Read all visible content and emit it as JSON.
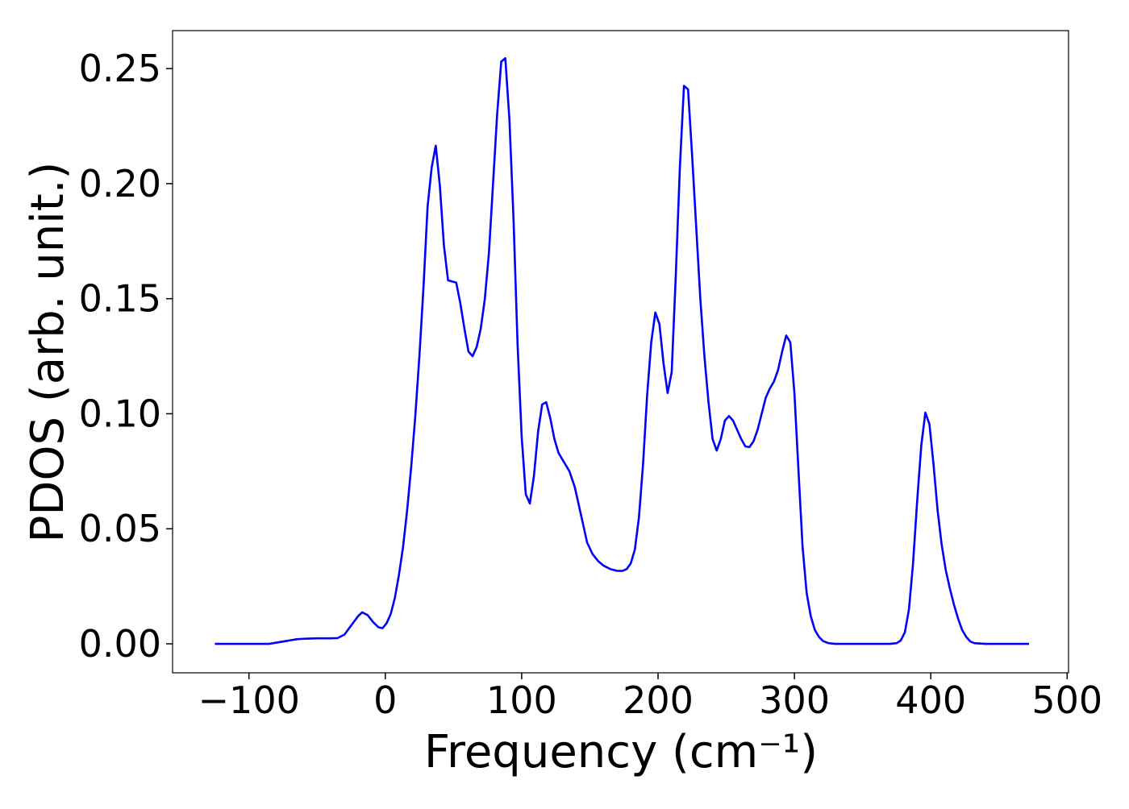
{
  "chart_data": {
    "type": "line",
    "x_label": "Frequency (cm⁻¹)",
    "y_label": "PDOS (arb. unit.)",
    "xlim": [
      -156,
      501
    ],
    "ylim": [
      -0.0126,
      0.2665
    ],
    "xticks": [
      {
        "value": -100,
        "label": "−100"
      },
      0,
      100,
      200,
      300,
      400,
      500
    ],
    "yticks": [
      {
        "value": 0,
        "label": "0.00"
      },
      0.05,
      {
        "value": 0.1,
        "label": "0.10"
      },
      0.15,
      {
        "value": 0.2,
        "label": "0.20"
      },
      0.25
    ],
    "x": [
      -125,
      -110,
      -95,
      -85,
      -80,
      -75,
      -70,
      -65,
      -60,
      -50,
      -40,
      -35,
      -30,
      -25,
      -20,
      -17,
      -13,
      -9,
      -5,
      -2,
      1,
      4,
      7,
      10,
      13,
      16,
      19,
      22,
      25,
      28,
      31,
      34,
      37,
      40,
      43,
      46,
      52,
      55,
      58,
      61,
      64,
      67,
      70,
      73,
      76,
      79,
      82,
      85,
      88,
      91,
      94,
      97,
      100,
      103,
      106,
      109,
      112,
      115,
      118,
      121,
      124,
      127,
      131,
      135,
      139,
      142,
      145,
      148,
      152,
      156,
      160,
      165,
      170,
      174,
      177,
      180,
      183,
      186,
      189,
      192,
      195,
      198,
      201,
      204,
      207,
      210,
      213,
      216,
      219,
      222,
      225,
      228,
      231,
      234,
      237,
      240,
      243,
      246,
      249,
      252,
      255,
      258,
      261,
      264,
      267,
      270,
      273,
      276,
      279,
      282,
      285,
      288,
      291,
      294,
      297,
      300,
      303,
      306,
      309,
      312,
      315,
      318,
      321,
      325,
      330,
      340,
      350,
      360,
      370,
      375,
      378,
      381,
      384,
      387,
      390,
      393,
      396,
      399,
      402,
      405,
      408,
      411,
      414,
      417,
      420,
      423,
      426,
      429,
      432,
      440,
      455,
      472
    ],
    "series": [
      {
        "color": "#0000ff",
        "values": [
          0,
          0,
          0,
          0,
          0.0005,
          0.001,
          0.0015,
          0.002,
          0.0022,
          0.0024,
          0.0024,
          0.0025,
          0.004,
          0.008,
          0.012,
          0.0137,
          0.0125,
          0.0095,
          0.0072,
          0.0068,
          0.009,
          0.013,
          0.02,
          0.03,
          0.042,
          0.058,
          0.077,
          0.099,
          0.125,
          0.155,
          0.19,
          0.207,
          0.2165,
          0.199,
          0.173,
          0.158,
          0.157,
          0.148,
          0.137,
          0.127,
          0.125,
          0.129,
          0.137,
          0.15,
          0.17,
          0.2,
          0.23,
          0.253,
          0.2545,
          0.228,
          0.185,
          0.13,
          0.09,
          0.065,
          0.061,
          0.073,
          0.092,
          0.104,
          0.105,
          0.098,
          0.089,
          0.083,
          0.079,
          0.075,
          0.068,
          0.06,
          0.052,
          0.044,
          0.039,
          0.036,
          0.034,
          0.0325,
          0.0317,
          0.0317,
          0.0325,
          0.035,
          0.041,
          0.055,
          0.078,
          0.108,
          0.131,
          0.144,
          0.139,
          0.122,
          0.109,
          0.118,
          0.16,
          0.207,
          0.2425,
          0.241,
          0.212,
          0.181,
          0.15,
          0.125,
          0.105,
          0.089,
          0.084,
          0.089,
          0.097,
          0.099,
          0.097,
          0.093,
          0.089,
          0.0858,
          0.0855,
          0.088,
          0.093,
          0.1,
          0.107,
          0.111,
          0.114,
          0.119,
          0.127,
          0.134,
          0.131,
          0.109,
          0.075,
          0.042,
          0.022,
          0.012,
          0.006,
          0.003,
          0.0012,
          0.0003,
          0,
          0,
          0,
          0,
          0,
          0.0003,
          0.0015,
          0.005,
          0.015,
          0.035,
          0.062,
          0.086,
          0.1005,
          0.0955,
          0.078,
          0.058,
          0.043,
          0.032,
          0.024,
          0.017,
          0.011,
          0.006,
          0.003,
          0.001,
          0.0003,
          0,
          0,
          0
        ]
      }
    ]
  }
}
